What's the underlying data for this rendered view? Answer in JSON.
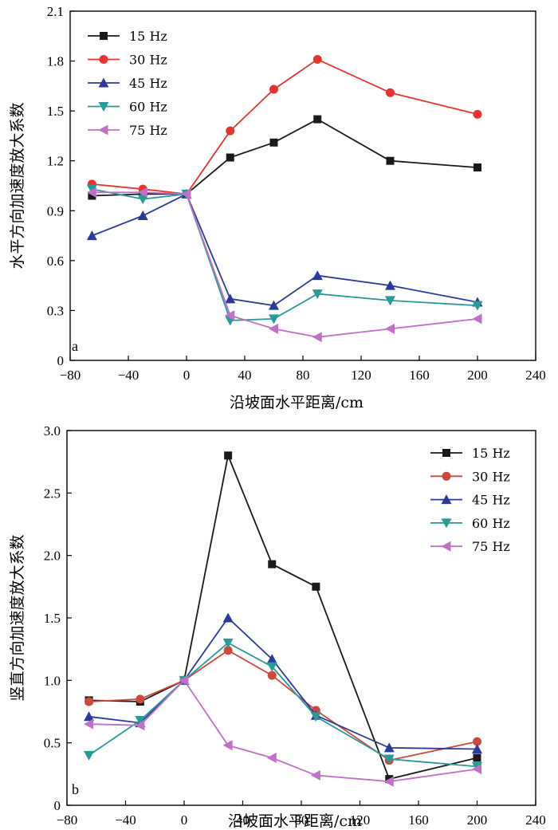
{
  "chart_data": [
    {
      "id": "a",
      "type": "line",
      "panel_label": "a",
      "xlabel": "沿坡面水平距离/cm",
      "ylabel": "水平方向加速度放大系数",
      "xlim": [
        -80,
        240
      ],
      "ylim": [
        0,
        2.1
      ],
      "xticks": [
        -80,
        -40,
        0,
        40,
        80,
        120,
        160,
        200,
        240
      ],
      "xtick_labels": [
        "−80",
        "−40",
        "0",
        "40",
        "80",
        "120",
        "160",
        "200",
        "240"
      ],
      "yticks": [
        0,
        0.3,
        0.6,
        0.9,
        1.2,
        1.5,
        1.8,
        2.1
      ],
      "ytick_labels": [
        "0",
        "0.3",
        "0.6",
        "0.9",
        "1.2",
        "1.5",
        "1.8",
        "2.1"
      ],
      "grid": false,
      "legend_position": "top-left",
      "series": [
        {
          "name": "15 Hz",
          "marker": "square",
          "color": "#1a1a1a",
          "x": [
            -65,
            -30,
            0,
            30,
            60,
            90,
            140,
            200
          ],
          "y": [
            0.99,
            1.0,
            1.0,
            1.22,
            1.31,
            1.45,
            1.2,
            1.16
          ]
        },
        {
          "name": "30 Hz",
          "marker": "circle",
          "color": "#e8332e",
          "x": [
            -65,
            -30,
            0,
            30,
            60,
            90,
            140,
            200
          ],
          "y": [
            1.06,
            1.03,
            1.0,
            1.38,
            1.63,
            1.81,
            1.61,
            1.48
          ]
        },
        {
          "name": "45 Hz",
          "marker": "triangle-up",
          "color": "#2b3a9c",
          "x": [
            -65,
            -30,
            0,
            30,
            60,
            90,
            140,
            200
          ],
          "y": [
            0.75,
            0.87,
            1.0,
            0.37,
            0.33,
            0.51,
            0.45,
            0.35
          ]
        },
        {
          "name": "60 Hz",
          "marker": "triangle-down",
          "color": "#2a9a96",
          "x": [
            -65,
            -30,
            0,
            30,
            60,
            90,
            140,
            200
          ],
          "y": [
            1.03,
            0.97,
            1.0,
            0.24,
            0.25,
            0.4,
            0.36,
            0.33
          ]
        },
        {
          "name": "75 Hz",
          "marker": "triangle-left",
          "color": "#c070c8",
          "x": [
            -65,
            -30,
            0,
            30,
            60,
            90,
            140,
            200
          ],
          "y": [
            1.01,
            1.01,
            1.0,
            0.27,
            0.19,
            0.14,
            0.19,
            0.25
          ]
        }
      ]
    },
    {
      "id": "b",
      "type": "line",
      "panel_label": "b",
      "xlabel": "沿坡面水平距离/cm",
      "ylabel": "竖直方向加速度放大系数",
      "xlim": [
        -80,
        240
      ],
      "ylim": [
        0,
        3.0
      ],
      "xticks": [
        -80,
        -40,
        0,
        40,
        80,
        120,
        160,
        200,
        240
      ],
      "xtick_labels": [
        "−80",
        "−40",
        "0",
        "40",
        "80",
        "120",
        "160",
        "200",
        "240"
      ],
      "yticks": [
        0,
        0.5,
        1.0,
        1.5,
        2.0,
        2.5,
        3.0
      ],
      "ytick_labels": [
        "0",
        "0.5",
        "1.0",
        "1.5",
        "2.0",
        "2.5",
        "3.0"
      ],
      "grid": false,
      "legend_position": "top-right",
      "series": [
        {
          "name": "15 Hz",
          "marker": "square",
          "color": "#1a1a1a",
          "x": [
            -65,
            -30,
            0,
            30,
            60,
            90,
            140,
            200
          ],
          "y": [
            0.84,
            0.83,
            1.0,
            2.8,
            1.93,
            1.75,
            0.21,
            0.38
          ]
        },
        {
          "name": "30 Hz",
          "marker": "circle",
          "color": "#cc4a3d",
          "x": [
            -65,
            -30,
            0,
            30,
            60,
            90,
            140,
            200
          ],
          "y": [
            0.83,
            0.85,
            1.0,
            1.24,
            1.04,
            0.76,
            0.36,
            0.51
          ]
        },
        {
          "name": "45 Hz",
          "marker": "triangle-up",
          "color": "#2b3a9c",
          "x": [
            -65,
            -30,
            0,
            30,
            60,
            90,
            140,
            200
          ],
          "y": [
            0.71,
            0.66,
            1.0,
            1.5,
            1.17,
            0.72,
            0.46,
            0.45
          ]
        },
        {
          "name": "60 Hz",
          "marker": "triangle-down",
          "color": "#2a9a96",
          "x": [
            -65,
            -30,
            0,
            30,
            60,
            90,
            140,
            200
          ],
          "y": [
            0.4,
            0.68,
            1.0,
            1.3,
            1.11,
            0.71,
            0.37,
            0.31
          ]
        },
        {
          "name": "75 Hz",
          "marker": "triangle-left",
          "color": "#c070c8",
          "x": [
            -65,
            -30,
            0,
            30,
            60,
            90,
            140,
            200
          ],
          "y": [
            0.65,
            0.64,
            1.0,
            0.48,
            0.38,
            0.24,
            0.19,
            0.29
          ]
        }
      ]
    }
  ]
}
